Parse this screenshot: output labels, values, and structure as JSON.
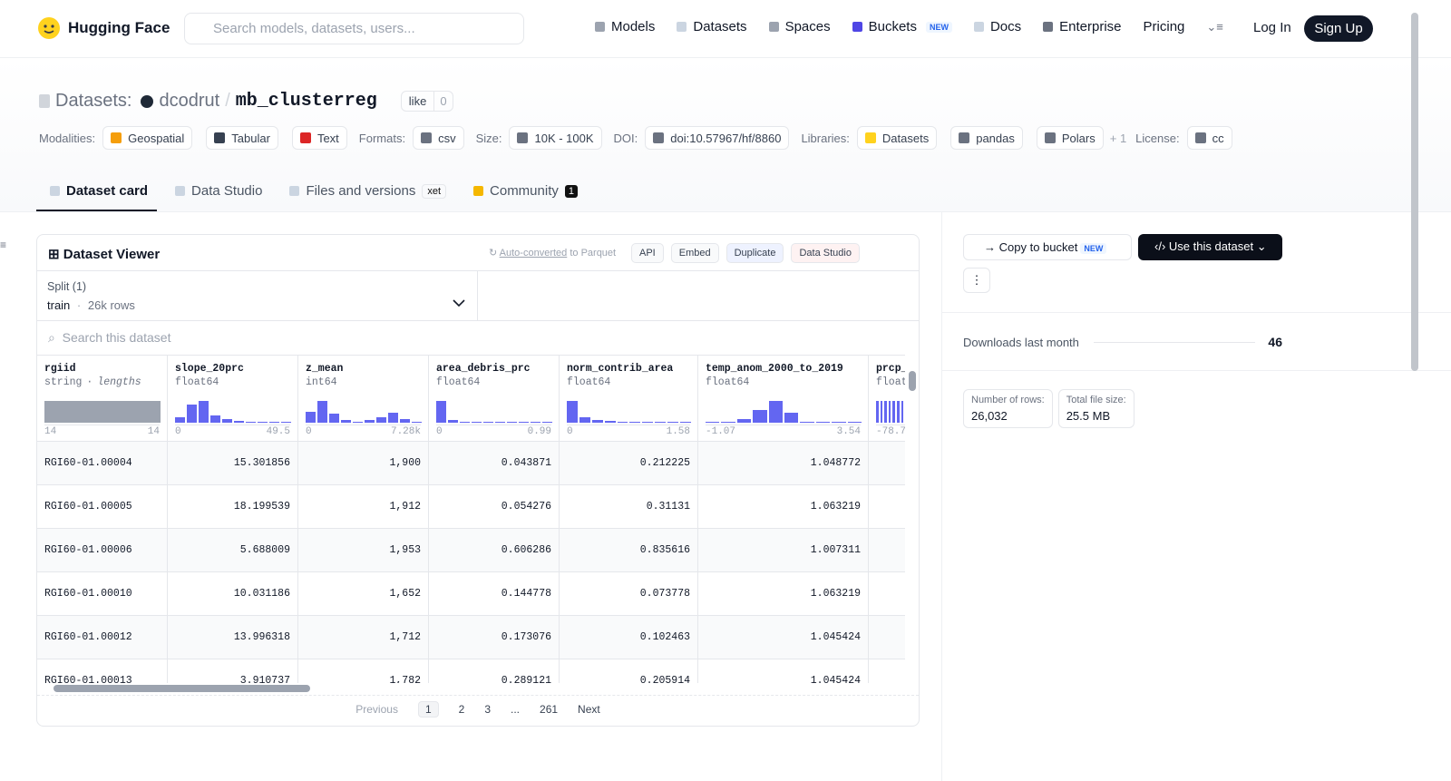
{
  "nav": {
    "brand": "Hugging Face",
    "search_placeholder": "Search models, datasets, users...",
    "links": [
      "Models",
      "Datasets",
      "Spaces",
      "Buckets",
      "Docs",
      "Enterprise",
      "Pricing"
    ],
    "buckets_badge": "NEW",
    "login": "Log In",
    "signup": "Sign Up"
  },
  "header": {
    "prefix": "Datasets:",
    "owner": "dcodrut",
    "separator": "/",
    "name": "mb_clusterreg",
    "like": "like",
    "like_count": 0,
    "meta": [
      {
        "label": "Modalities:",
        "tags": [
          "Geospatial",
          "Tabular",
          "Text"
        ]
      },
      {
        "label": "Formats:",
        "tags": [
          "csv"
        ]
      },
      {
        "label": "Size:",
        "tags": [
          "10K - 100K"
        ]
      },
      {
        "label": "DOI:",
        "tags": [
          "doi:10.57967/hf/8860"
        ]
      },
      {
        "label": "Libraries:",
        "tags": [
          "Datasets",
          "pandas",
          "Polars"
        ],
        "extra": "+ 1"
      },
      {
        "label": "License:",
        "tags": [
          "cc"
        ]
      }
    ]
  },
  "tabs": [
    {
      "label": "Dataset card"
    },
    {
      "label": "Data Studio"
    },
    {
      "label": "Files and versions",
      "badge": "xet"
    },
    {
      "label": "Community",
      "badge": "1"
    }
  ],
  "viewer": {
    "title": "Dataset Viewer",
    "auto_converted": "Auto-converted",
    "to_parquet": "to Parquet",
    "actions": [
      "API",
      "Embed",
      "Duplicate",
      "Data Studio"
    ],
    "split_label": "Split (1)",
    "split": "train",
    "split_dot": "·",
    "split_rows": "26k rows",
    "search_placeholder": "Search this dataset",
    "columns": [
      {
        "name": "rgiid",
        "dtype": "string",
        "dtype_sep": "·",
        "dtype_extra": "lengths",
        "hist": [
          24
        ],
        "min": "14",
        "max": "14"
      },
      {
        "name": "slope_20prc",
        "dtype": "float64",
        "hist": [
          6,
          20,
          24,
          8,
          4,
          2,
          1,
          1,
          1,
          1
        ],
        "min": "0",
        "max": "49.5"
      },
      {
        "name": "z_mean",
        "dtype": "int64",
        "hist": [
          12,
          24,
          10,
          3,
          1,
          3,
          6,
          11,
          4,
          1
        ],
        "min": "0",
        "max": "7.28k"
      },
      {
        "name": "area_debris_prc",
        "dtype": "float64",
        "hist": [
          24,
          3,
          1,
          1,
          1,
          1,
          1,
          1,
          1,
          1
        ],
        "min": "0",
        "max": "0.99"
      },
      {
        "name": "norm_contrib_area",
        "dtype": "float64",
        "hist": [
          24,
          6,
          3,
          2,
          1,
          1,
          1,
          1,
          1,
          1
        ],
        "min": "0",
        "max": "1.58"
      },
      {
        "name": "temp_anom_2000_to_2019",
        "dtype": "float64",
        "hist": [
          1,
          1,
          4,
          14,
          24,
          11,
          1,
          1,
          1,
          1
        ],
        "min": "-1.07",
        "max": "3.54"
      },
      {
        "name": "prcp_",
        "dtype": "float64",
        "hist": [
          1,
          1,
          1,
          1,
          1,
          1,
          1,
          1,
          1,
          1
        ],
        "min": "-78.7",
        "max": ""
      }
    ],
    "rows": [
      [
        "RGI60-01.00004",
        "15.301856",
        "1,900",
        "0.043871",
        "0.212225",
        "1.048772"
      ],
      [
        "RGI60-01.00005",
        "18.199539",
        "1,912",
        "0.054276",
        "0.31131",
        "1.063219"
      ],
      [
        "RGI60-01.00006",
        "5.688009",
        "1,953",
        "0.606286",
        "0.835616",
        "1.007311"
      ],
      [
        "RGI60-01.00010",
        "10.031186",
        "1,652",
        "0.144778",
        "0.073778",
        "1.063219"
      ],
      [
        "RGI60-01.00012",
        "13.996318",
        "1,712",
        "0.173076",
        "0.102463",
        "1.045424"
      ],
      [
        "RGI60-01.00013",
        "3.910737",
        "1,782",
        "0.289121",
        "0.205914",
        "1.045424"
      ]
    ],
    "pagination": {
      "previous": "Previous",
      "pages": [
        "1",
        "2",
        "3",
        "...",
        "261"
      ],
      "next": "Next"
    }
  },
  "sidebar": {
    "copy": "Copy to bucket",
    "copy_badge": "NEW",
    "use": "Use this dataset",
    "downloads_label": "Downloads last month",
    "downloads": 46,
    "stats": [
      {
        "label": "Number of rows:",
        "value": "26,032"
      },
      {
        "label": "Total file size:",
        "value": "25.5 MB"
      }
    ]
  }
}
